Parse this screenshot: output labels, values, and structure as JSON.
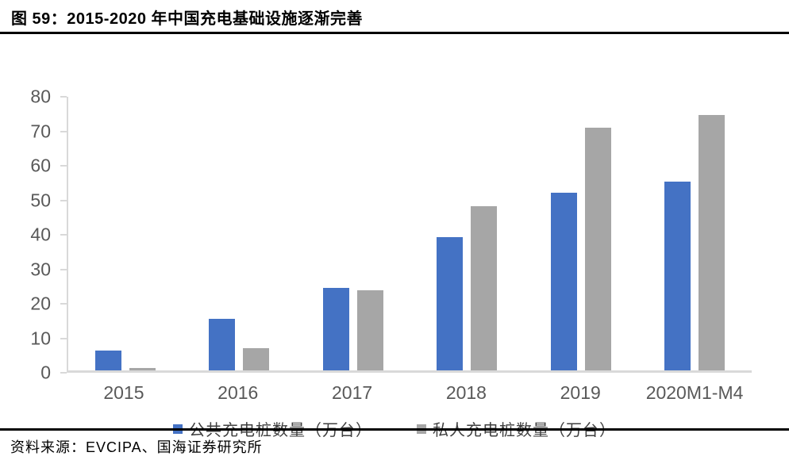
{
  "page": {
    "title": "图 59：2015-2020 年中国充电基础设施逐渐完善",
    "source_note": "资料来源：EVCIPA、国海证券研究所"
  },
  "colors": {
    "public_bar": "#4472C4",
    "private_bar": "#A6A6A6",
    "axis_line": "#D9D9D9",
    "axis_text": "#595959",
    "rule": "#000000"
  },
  "chart_data": {
    "type": "bar",
    "title": "2015-2020 年中国充电基础设施逐渐完善",
    "categories": [
      "2015",
      "2016",
      "2017",
      "2018",
      "2019",
      "2020M1-M4"
    ],
    "series": [
      {
        "name": "公共充电桩数量（万台）",
        "color": "#4472C4",
        "values": [
          5.8,
          15.0,
          24.0,
          38.7,
          51.6,
          54.7
        ]
      },
      {
        "name": "私人充电桩数量（万台）",
        "color": "#A6A6A6",
        "values": [
          0.8,
          6.5,
          23.2,
          47.7,
          70.3,
          74.0
        ]
      }
    ],
    "xlabel": "",
    "ylabel": "",
    "ylim": [
      0,
      80
    ],
    "yticks": [
      0,
      10,
      20,
      30,
      40,
      50,
      60,
      70,
      80
    ],
    "grid": false,
    "legend_position": "bottom"
  }
}
